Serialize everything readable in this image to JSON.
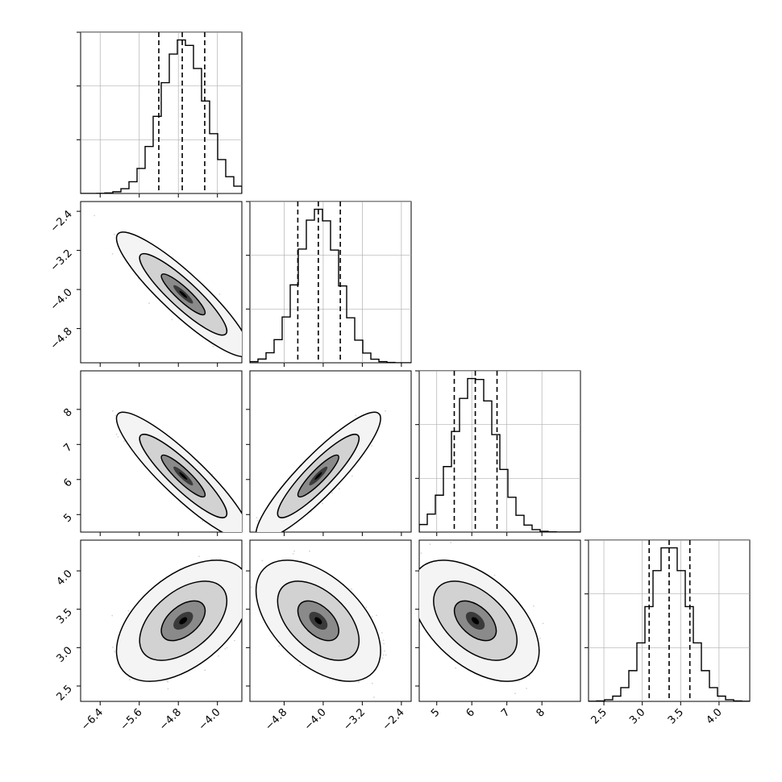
{
  "chart_data": {
    "type": "corner",
    "parameters": [
      {
        "name": "",
        "range": [
          -6.8,
          -3.5
        ],
        "ticks": [
          -6.4,
          -5.6,
          -4.8,
          -4.0
        ],
        "tick_labels": [
          "−6.4",
          "−5.6",
          "−4.8",
          "−4.0"
        ],
        "mean": -4.7,
        "sd": 0.45,
        "quantiles": [
          -5.2,
          -4.72,
          -4.26
        ]
      },
      {
        "name": "",
        "range": [
          -5.5,
          -2.2
        ],
        "ticks": [
          -4.8,
          -4.0,
          -3.2,
          -2.4
        ],
        "tick_labels": [
          "−4.8",
          "−4.0",
          "−3.2",
          "−2.4"
        ],
        "tick_labels_left": [
          "−2.4",
          "−3.2",
          "−4.0",
          "−4.8"
        ],
        "mean": -4.1,
        "sd": 0.42,
        "quantiles": [
          -4.52,
          -4.1,
          -3.65
        ]
      },
      {
        "name": "",
        "range": [
          4.5,
          9.1
        ],
        "ticks": [
          5,
          6,
          7,
          8
        ],
        "tick_labels": [
          "5",
          "6",
          "7",
          "8"
        ],
        "tick_labels_left": [
          "8",
          "7",
          "6",
          "5"
        ],
        "mean": 6.1,
        "sd": 0.6,
        "quantiles": [
          5.5,
          6.1,
          6.72
        ]
      },
      {
        "name": "",
        "range": [
          2.3,
          4.4
        ],
        "ticks": [
          2.5,
          3.0,
          3.5,
          4.0
        ],
        "tick_labels": [
          "2.5",
          "3.0",
          "3.5",
          "4.0"
        ],
        "tick_labels_left": [
          "4.0",
          "3.5",
          "3.0",
          "2.5"
        ],
        "mean": 3.35,
        "sd": 0.26,
        "quantiles": [
          3.09,
          3.35,
          3.62
        ]
      }
    ],
    "correlations": [
      [
        1,
        -0.9,
        -0.9,
        0.5
      ],
      [
        -0.9,
        1,
        0.9,
        -0.5
      ],
      [
        -0.9,
        0.9,
        1,
        -0.5
      ],
      [
        0.5,
        -0.5,
        -0.5,
        1
      ]
    ],
    "histogram_bins": 20,
    "contour_levels": [
      0.39,
      0.86,
      0.99
    ],
    "grid": true,
    "legend": "none"
  },
  "colors": {
    "points": "#808080",
    "lines": "#000000",
    "grid": "#b0b0b0",
    "density_max": "#000000"
  }
}
